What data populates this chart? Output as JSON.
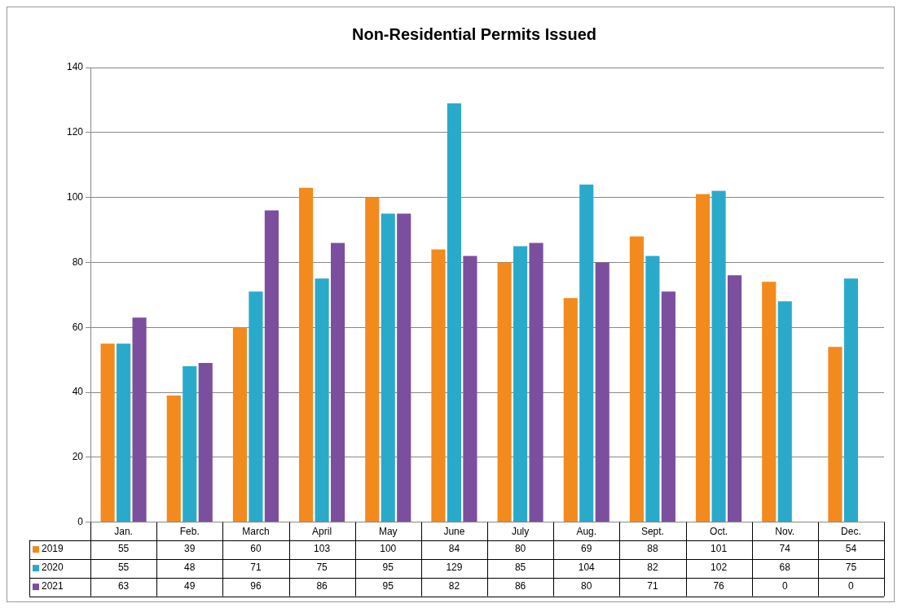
{
  "chart_data": {
    "type": "bar",
    "title": "Non-Residential Permits Issued",
    "categories": [
      "Jan.",
      "Feb.",
      "March",
      "April",
      "May",
      "June",
      "July",
      "Aug.",
      "Sept.",
      "Oct.",
      "Nov.",
      "Dec."
    ],
    "series": [
      {
        "name": "2019",
        "color": "#f28a1e",
        "values": [
          55,
          39,
          60,
          103,
          100,
          84,
          80,
          69,
          88,
          101,
          74,
          54
        ]
      },
      {
        "name": "2020",
        "color": "#2aaacb",
        "values": [
          55,
          48,
          71,
          75,
          95,
          129,
          85,
          104,
          82,
          102,
          68,
          75
        ]
      },
      {
        "name": "2021",
        "color": "#7b4f9e",
        "values": [
          63,
          49,
          96,
          86,
          95,
          82,
          86,
          80,
          71,
          76,
          0,
          0
        ]
      }
    ],
    "ylim": [
      0,
      140
    ],
    "yticks": [
      0,
      20,
      40,
      60,
      80,
      100,
      120,
      140
    ],
    "grid": "y",
    "legend": "bottom",
    "data_labels": true
  }
}
